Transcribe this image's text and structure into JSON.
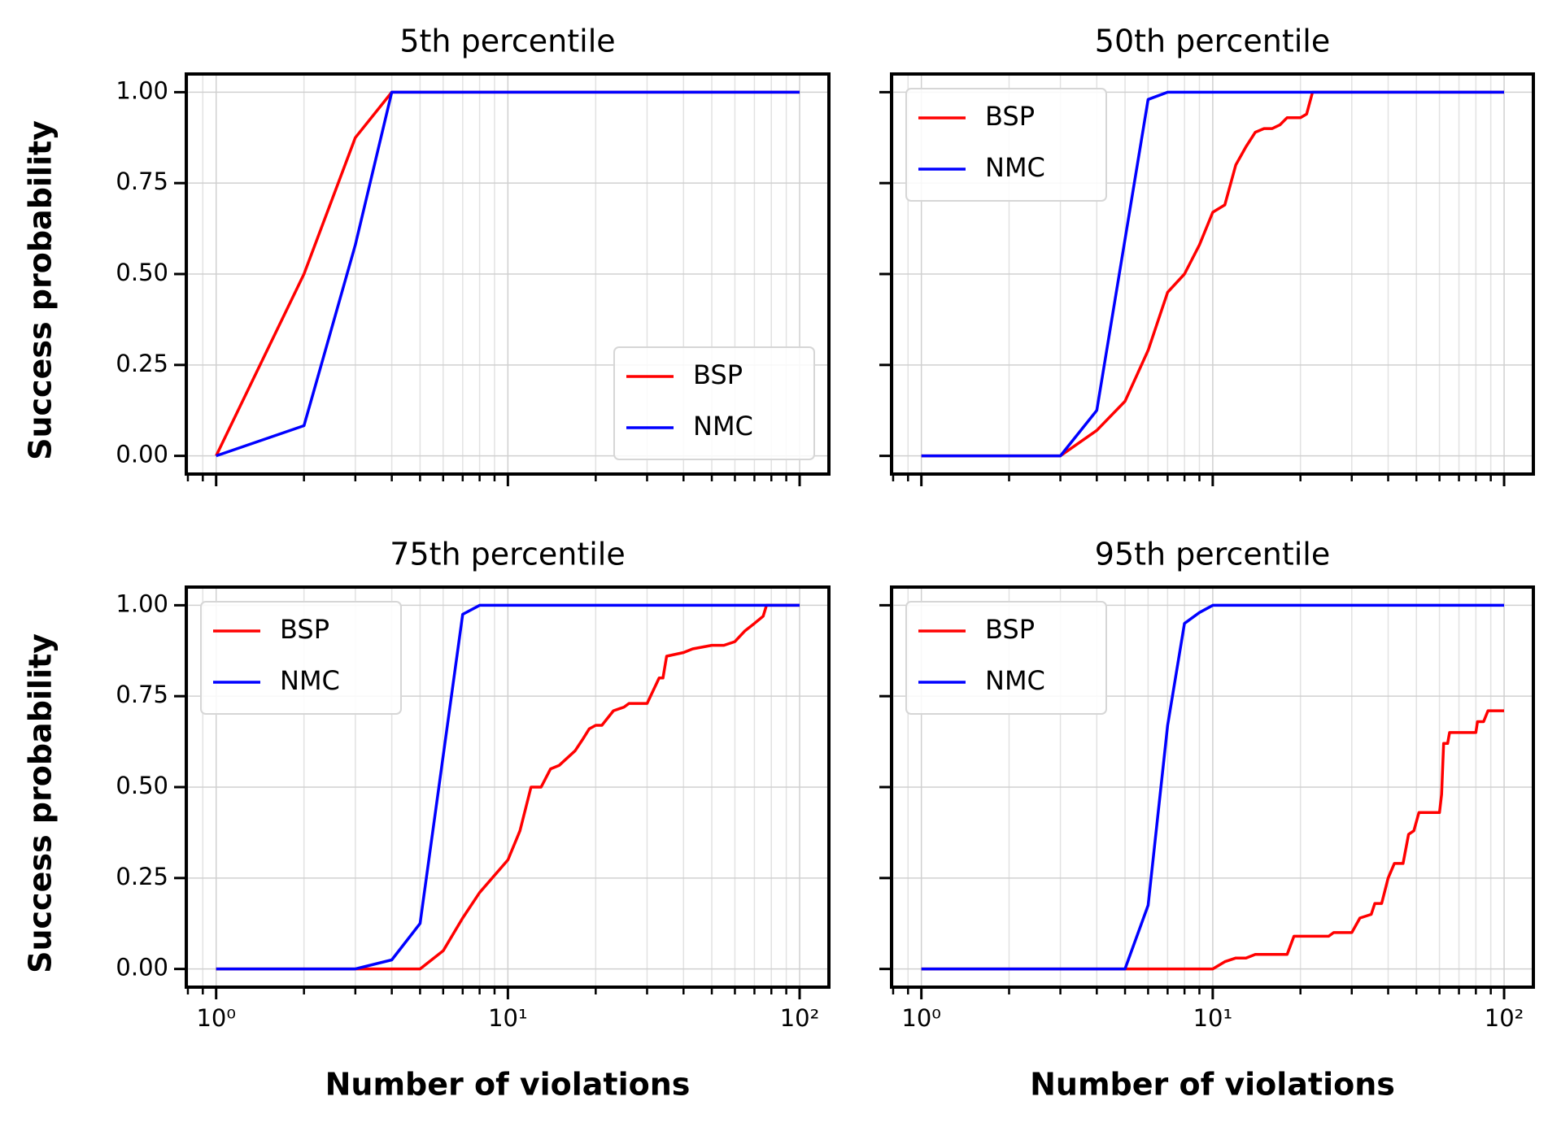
{
  "chart_data": [
    {
      "type": "line",
      "title": "5th percentile",
      "ylabel": "Success probability",
      "xscale": "log",
      "grid": true,
      "legend": "lower right",
      "xlim": [
        0.79,
        126
      ],
      "ylim": [
        -0.05,
        1.05
      ],
      "xticks": [
        1,
        10,
        100
      ],
      "yticks": [
        {
          "value": 0,
          "label": "0.00"
        },
        {
          "value": 0.25,
          "label": "0.25"
        },
        {
          "value": 0.5,
          "label": "0.50"
        },
        {
          "value": 0.75,
          "label": "0.75"
        },
        {
          "value": 1,
          "label": "1.00"
        }
      ],
      "series": [
        {
          "name": "BSP",
          "color": "#ff0000",
          "x": [
            1,
            2,
            3,
            4,
            100
          ],
          "values": [
            0,
            0.5,
            0.875,
            1,
            1
          ]
        },
        {
          "name": "NMC",
          "color": "#0000ff",
          "x": [
            1,
            2,
            3,
            4,
            100
          ],
          "values": [
            0,
            0.083,
            0.58,
            1,
            1
          ]
        }
      ]
    },
    {
      "type": "line",
      "title": "50th percentile",
      "xscale": "log",
      "grid": true,
      "legend": "upper left",
      "xlim": [
        0.79,
        126
      ],
      "ylim": [
        -0.05,
        1.05
      ],
      "xticks": [
        1,
        10,
        100
      ],
      "yticks": [
        0,
        0.25,
        0.5,
        0.75,
        1
      ],
      "series": [
        {
          "name": "BSP",
          "color": "#ff0000",
          "x": [
            1,
            3,
            4,
            5,
            6,
            7,
            8,
            9,
            10,
            11,
            12,
            13,
            14,
            15,
            16,
            17,
            18,
            20,
            21,
            22,
            100
          ],
          "values": [
            0,
            0,
            0.07,
            0.15,
            0.29,
            0.45,
            0.5,
            0.58,
            0.67,
            0.69,
            0.8,
            0.85,
            0.89,
            0.9,
            0.9,
            0.91,
            0.93,
            0.93,
            0.94,
            1,
            1
          ]
        },
        {
          "name": "NMC",
          "color": "#0000ff",
          "x": [
            1,
            3,
            4,
            6,
            7,
            100
          ],
          "values": [
            0,
            0,
            0.125,
            0.98,
            1,
            1
          ]
        }
      ]
    },
    {
      "type": "line",
      "title": "75th percentile",
      "ylabel": "Success probability",
      "xlabel": "Number of violations",
      "xscale": "log",
      "grid": true,
      "legend": "upper left",
      "xlim": [
        0.79,
        126
      ],
      "ylim": [
        -0.05,
        1.05
      ],
      "xticks": [
        {
          "value": 1,
          "label": "10⁰"
        },
        {
          "value": 10,
          "label": "10¹"
        },
        {
          "value": 100,
          "label": "10²"
        }
      ],
      "yticks": [
        {
          "value": 0,
          "label": "0.00"
        },
        {
          "value": 0.25,
          "label": "0.25"
        },
        {
          "value": 0.5,
          "label": "0.50"
        },
        {
          "value": 0.75,
          "label": "0.75"
        },
        {
          "value": 1,
          "label": "1.00"
        }
      ],
      "series": [
        {
          "name": "BSP",
          "color": "#ff0000",
          "x": [
            1,
            5,
            6,
            7,
            8,
            10,
            11,
            12,
            13,
            14,
            15,
            17,
            18,
            19,
            20,
            21,
            23,
            25,
            26,
            30,
            33,
            34,
            35,
            40,
            43,
            50,
            55,
            60,
            65,
            70,
            75,
            77,
            100
          ],
          "values": [
            0,
            0,
            0.05,
            0.14,
            0.21,
            0.3,
            0.38,
            0.5,
            0.5,
            0.55,
            0.56,
            0.6,
            0.63,
            0.66,
            0.67,
            0.67,
            0.71,
            0.72,
            0.73,
            0.73,
            0.8,
            0.8,
            0.86,
            0.87,
            0.88,
            0.89,
            0.89,
            0.9,
            0.93,
            0.95,
            0.97,
            1,
            1
          ]
        },
        {
          "name": "NMC",
          "color": "#0000ff",
          "x": [
            1,
            3,
            4,
            5,
            7,
            8,
            100
          ],
          "values": [
            0,
            0,
            0.025,
            0.125,
            0.975,
            1,
            1
          ]
        }
      ]
    },
    {
      "type": "line",
      "title": "95th percentile",
      "xlabel": "Number of violations",
      "xscale": "log",
      "grid": true,
      "legend": "upper left",
      "xlim": [
        0.79,
        126
      ],
      "ylim": [
        -0.05,
        1.05
      ],
      "xticks": [
        {
          "value": 1,
          "label": "10⁰"
        },
        {
          "value": 10,
          "label": "10¹"
        },
        {
          "value": 100,
          "label": "10²"
        }
      ],
      "yticks": [
        0,
        0.25,
        0.5,
        0.75,
        1
      ],
      "series": [
        {
          "name": "BSP",
          "color": "#ff0000",
          "x": [
            1,
            10,
            11,
            12,
            13,
            14,
            18,
            19,
            25,
            26,
            30,
            32,
            35,
            36,
            38,
            40,
            42,
            45,
            47,
            49,
            51,
            60,
            61,
            62,
            64,
            65,
            80,
            81,
            85,
            88,
            100
          ],
          "values": [
            0,
            0,
            0.02,
            0.03,
            0.03,
            0.04,
            0.04,
            0.09,
            0.09,
            0.1,
            0.1,
            0.14,
            0.15,
            0.18,
            0.18,
            0.25,
            0.29,
            0.29,
            0.37,
            0.38,
            0.43,
            0.43,
            0.48,
            0.62,
            0.62,
            0.65,
            0.65,
            0.68,
            0.68,
            0.71,
            0.71
          ]
        },
        {
          "name": "NMC",
          "color": "#0000ff",
          "x": [
            1,
            5,
            6,
            7,
            8,
            9,
            10,
            100
          ],
          "values": [
            0,
            0,
            0.175,
            0.67,
            0.95,
            0.98,
            1,
            1
          ]
        }
      ]
    }
  ]
}
